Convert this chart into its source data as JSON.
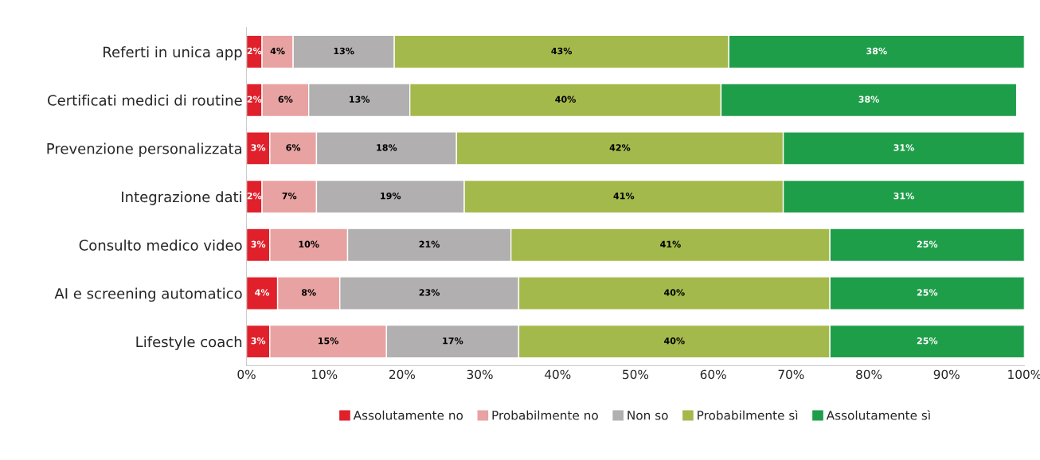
{
  "chart_data": {
    "type": "bar",
    "orientation": "horizontal",
    "stacked": true,
    "categories": [
      "Referti in unica app",
      "Certificati medici di routine",
      "Prevenzione personalizzata",
      "Integrazione dati",
      "Consulto medico video",
      "AI e screening automatico",
      "Lifestyle coach"
    ],
    "series": [
      {
        "name": "Assolutamente no",
        "color": "#e0202a",
        "values": [
          2,
          2,
          3,
          2,
          3,
          4,
          3
        ],
        "value_labels": [
          "2%",
          "2%",
          "3%",
          "2%",
          "3%",
          "4%",
          "3%"
        ]
      },
      {
        "name": "Probabilmente no",
        "color": "#e8a2a2",
        "values": [
          4,
          6,
          6,
          7,
          10,
          8,
          15
        ],
        "value_labels": [
          "4%",
          "6%",
          "6%",
          "7%",
          "10%",
          "8%",
          "15%"
        ]
      },
      {
        "name": "Non so",
        "color": "#b1afaf",
        "values": [
          13,
          13,
          18,
          19,
          21,
          23,
          17
        ],
        "value_labels": [
          "13%",
          "13%",
          "18%",
          "19%",
          "21%",
          "23%",
          "17%"
        ]
      },
      {
        "name": "Probabilmente sì",
        "color": "#a4b94b",
        "values": [
          43,
          40,
          42,
          41,
          41,
          40,
          40
        ],
        "value_labels": [
          "43%",
          "40%",
          "42%",
          "41%",
          "41%",
          "40%",
          "40%"
        ]
      },
      {
        "name": "Assolutamente sì",
        "color": "#1f9e4a",
        "values": [
          38,
          38,
          31,
          31,
          25,
          25,
          25
        ],
        "value_labels": [
          "38%",
          "38%",
          "31%",
          "31%",
          "25%",
          "25%",
          "25%"
        ]
      }
    ],
    "xlim": [
      0,
      100
    ],
    "xticks": [
      {
        "value": 0,
        "label": "0%"
      },
      {
        "value": 10,
        "label": "10%"
      },
      {
        "value": 20,
        "label": "20%"
      },
      {
        "value": 30,
        "label": "30%"
      },
      {
        "value": 40,
        "label": "40%"
      },
      {
        "value": 50,
        "label": "50%"
      },
      {
        "value": 60,
        "label": "60%"
      },
      {
        "value": 70,
        "label": "70%"
      },
      {
        "value": 80,
        "label": "80%"
      },
      {
        "value": 90,
        "label": "90%"
      },
      {
        "value": 100,
        "label": "100%"
      }
    ],
    "grid": false,
    "legend": "bottom"
  }
}
